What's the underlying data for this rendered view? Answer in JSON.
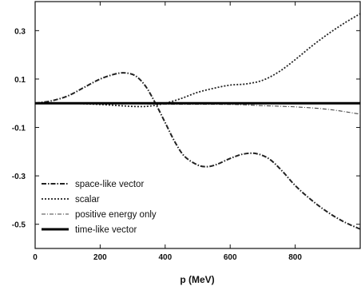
{
  "chart_data": {
    "type": "line",
    "xlabel": "p (MeV)",
    "ylabel": "",
    "xlim": [
      0,
      1000
    ],
    "ylim": [
      -0.6,
      0.42
    ],
    "x_ticks": [
      0,
      200,
      400,
      600,
      800
    ],
    "x_tick_labels": [
      "0",
      "200",
      "400",
      "600",
      "800"
    ],
    "y_ticks": [
      0.3,
      0.1,
      -0.1,
      -0.3,
      -0.5
    ],
    "y_tick_labels": [
      "0.3",
      "0.1",
      "-0.1",
      "-0.3",
      "-0.5"
    ],
    "grid": false,
    "legend_position": "bottom-left",
    "series": [
      {
        "name": "space-like vector",
        "style": "dash-dot",
        "x": [
          0,
          50,
          100,
          150,
          200,
          250,
          280,
          310,
          340,
          370,
          400,
          430,
          460,
          500,
          530,
          560,
          600,
          640,
          680,
          720,
          760,
          800,
          850,
          900,
          950,
          1000
        ],
        "y": [
          0.0,
          0.01,
          0.03,
          0.065,
          0.1,
          0.122,
          0.125,
          0.112,
          0.07,
          0.0,
          -0.08,
          -0.16,
          -0.22,
          -0.255,
          -0.262,
          -0.252,
          -0.228,
          -0.21,
          -0.208,
          -0.23,
          -0.28,
          -0.34,
          -0.4,
          -0.45,
          -0.49,
          -0.52
        ]
      },
      {
        "name": "scalar",
        "style": "dotted",
        "x": [
          0,
          100,
          200,
          300,
          350,
          400,
          450,
          500,
          550,
          600,
          650,
          700,
          750,
          800,
          850,
          900,
          950,
          1000
        ],
        "y": [
          0.0,
          0.0,
          -0.005,
          -0.013,
          -0.012,
          0.0,
          0.02,
          0.045,
          0.062,
          0.075,
          0.08,
          0.095,
          0.13,
          0.18,
          0.235,
          0.285,
          0.33,
          0.37
        ]
      },
      {
        "name": "positive energy only",
        "style": "dash-dot-thin",
        "x": [
          0,
          200,
          400,
          600,
          700,
          800,
          900,
          1000
        ],
        "y": [
          0.0,
          0.0,
          -0.004,
          -0.005,
          -0.01,
          -0.015,
          -0.025,
          -0.045
        ]
      },
      {
        "name": "time-like vector",
        "style": "solid-thick",
        "x": [
          0,
          1000
        ],
        "y": [
          0.0,
          0.0
        ]
      }
    ]
  }
}
